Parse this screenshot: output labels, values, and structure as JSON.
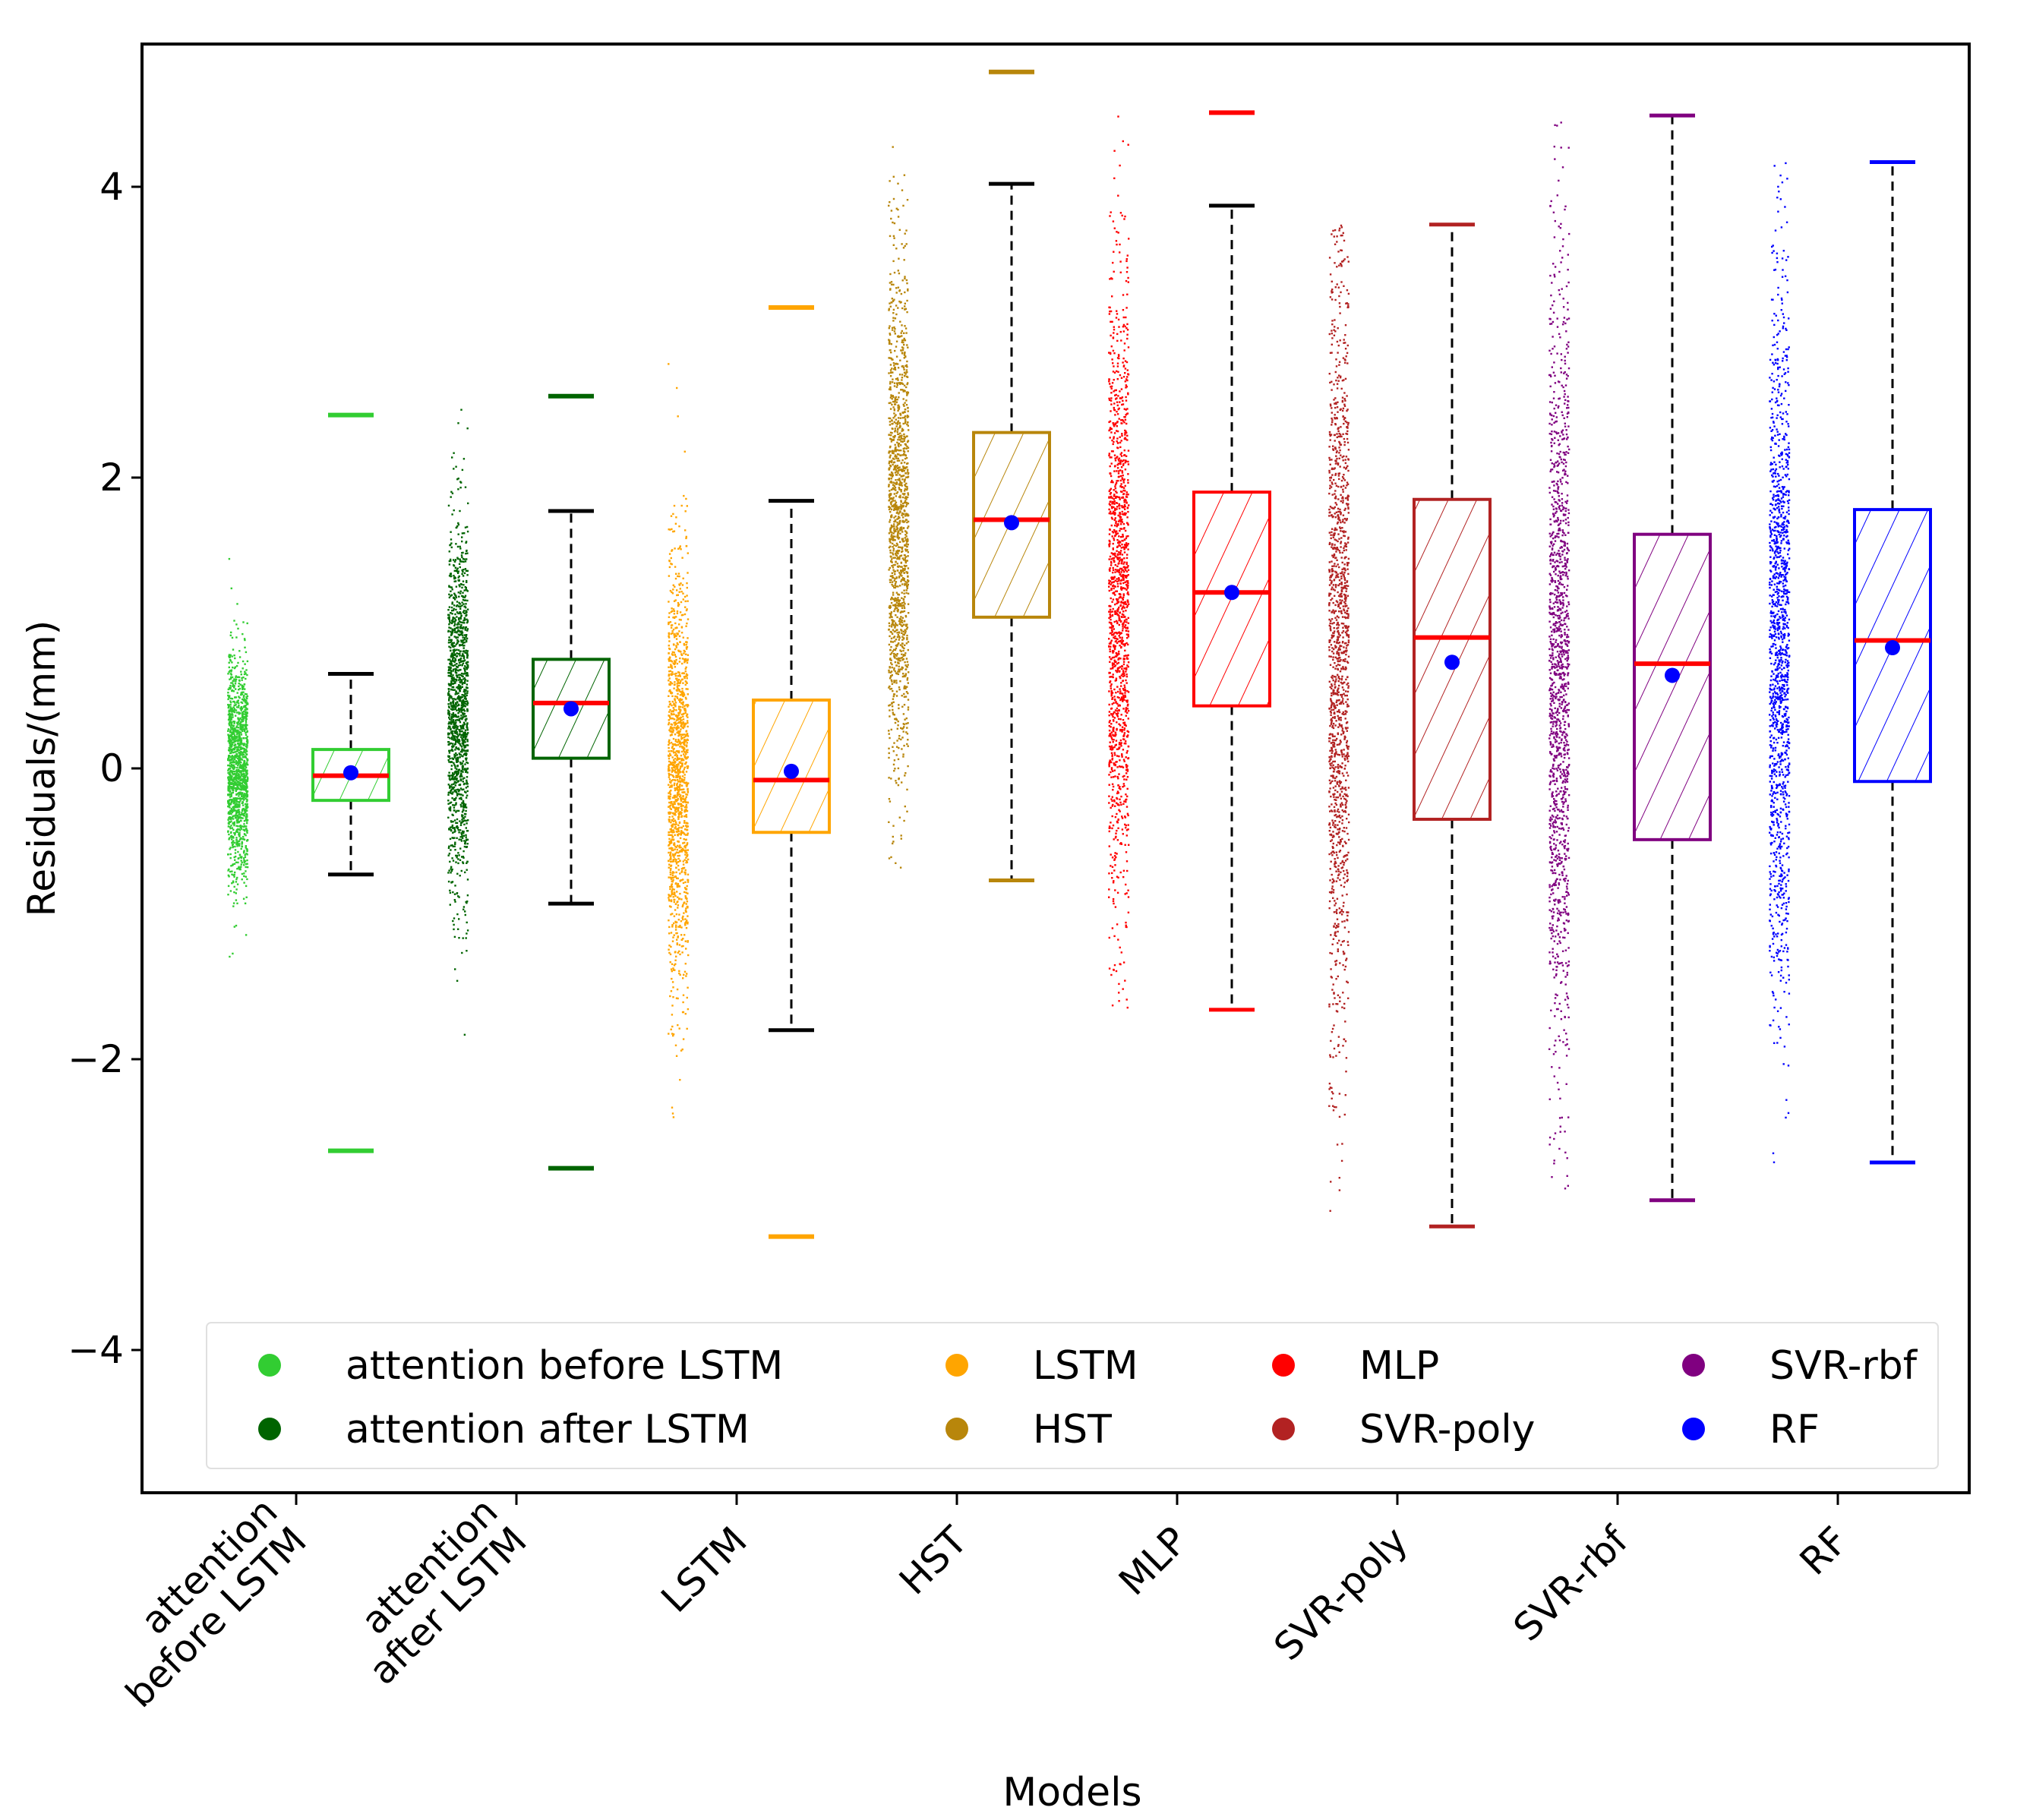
{
  "chart_data": {
    "type": "box",
    "xlabel": "Models",
    "ylabel": "Residuals/(mm)",
    "ylim": [
      -5.0,
      5.0
    ],
    "yticks": [
      -4,
      -2,
      0,
      2,
      4
    ],
    "ytick_labels": [
      "−4",
      "−2",
      "0",
      "2",
      "4"
    ],
    "legend_position": "lower-center",
    "categories": [
      "attention\nbefore LSTM",
      "attention\nafter LSTM",
      "LSTM",
      "HST",
      "MLP",
      "SVR-poly",
      "SVR-rbf",
      "RF"
    ],
    "series": [
      {
        "name": "attention before LSTM",
        "tick_label": "attention\nbefore LSTM",
        "color": "#32cd32",
        "q1": -0.22,
        "median": -0.05,
        "q3": 0.13,
        "mean": -0.03,
        "whisker_low": -0.73,
        "whisker_high": 0.65,
        "min": -2.63,
        "max": 2.43,
        "scatter_center": 0.0,
        "scatter_spread": 0.38
      },
      {
        "name": "attention after LSTM",
        "tick_label": "attention\nafter LSTM",
        "color": "#006400",
        "q1": 0.07,
        "median": 0.45,
        "q3": 0.75,
        "mean": 0.41,
        "whisker_low": -0.93,
        "whisker_high": 1.77,
        "min": -2.75,
        "max": 2.56,
        "scatter_center": 0.43,
        "scatter_spread": 0.6
      },
      {
        "name": "LSTM",
        "tick_label": "LSTM",
        "color": "#ffa500",
        "q1": -0.44,
        "median": -0.08,
        "q3": 0.47,
        "mean": -0.02,
        "whisker_low": -1.8,
        "whisker_high": 1.84,
        "min": -3.22,
        "max": 3.17,
        "scatter_center": -0.05,
        "scatter_spread": 0.75
      },
      {
        "name": "HST",
        "tick_label": "HST",
        "color": "#b8860b",
        "q1": 1.04,
        "median": 1.71,
        "q3": 2.31,
        "mean": 1.69,
        "whisker_low": -0.77,
        "whisker_high": 4.02,
        "min": -0.77,
        "max": 4.79,
        "scatter_center": 1.7,
        "scatter_spread": 0.85
      },
      {
        "name": "MLP",
        "tick_label": "MLP",
        "color": "#ff0000",
        "q1": 0.43,
        "median": 1.21,
        "q3": 1.9,
        "mean": 1.21,
        "whisker_low": -1.66,
        "whisker_high": 3.87,
        "min": -1.66,
        "max": 4.51,
        "scatter_center": 1.2,
        "scatter_spread": 1.05
      },
      {
        "name": "SVR-poly",
        "tick_label": "SVR-poly",
        "color": "#b22222",
        "q1": -0.35,
        "median": 0.9,
        "q3": 1.85,
        "mean": 0.73,
        "whisker_low": -3.15,
        "whisker_high": 3.74,
        "min": -3.15,
        "max": 3.74,
        "scatter_center": 0.75,
        "scatter_spread": 1.3
      },
      {
        "name": "SVR-rbf",
        "tick_label": "SVR-rbf",
        "color": "#800080",
        "q1": -0.49,
        "median": 0.72,
        "q3": 1.61,
        "mean": 0.64,
        "whisker_low": -2.97,
        "whisker_high": 4.49,
        "min": -2.97,
        "max": 4.49,
        "scatter_center": 0.65,
        "scatter_spread": 1.3
      },
      {
        "name": "RF",
        "tick_label": "RF",
        "color": "#0000ff",
        "q1": -0.09,
        "median": 0.88,
        "q3": 1.78,
        "mean": 0.83,
        "whisker_low": -2.71,
        "whisker_high": 4.17,
        "min": -2.71,
        "max": 4.17,
        "scatter_center": 0.85,
        "scatter_spread": 1.15
      }
    ],
    "legend": {
      "columns": [
        [
          "attention before LSTM",
          "attention after LSTM"
        ],
        [
          "LSTM",
          "HST"
        ],
        [
          "MLP",
          "SVR-poly"
        ],
        [
          "SVR-rbf",
          "RF"
        ]
      ]
    },
    "style": {
      "median_color": "#ff0000",
      "mean_color": "#0000ff",
      "whisker_color": "#000000",
      "hatch": "diagonal"
    }
  }
}
